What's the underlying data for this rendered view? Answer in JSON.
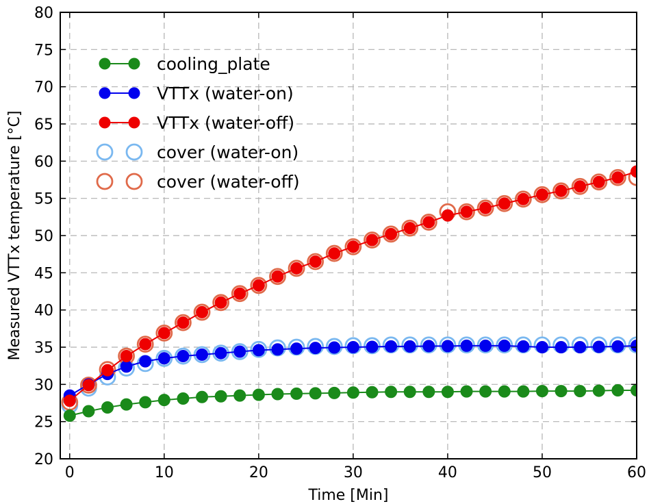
{
  "chart_data": {
    "type": "line",
    "title": "",
    "xlabel": "Time [Min]",
    "ylabel": "Measured VTTx temperature [°C]",
    "xlim": [
      -1,
      60
    ],
    "ylim": [
      20,
      80
    ],
    "xticks": [
      0,
      10,
      20,
      30,
      40,
      50,
      60
    ],
    "yticks": [
      20,
      25,
      30,
      35,
      40,
      45,
      50,
      55,
      60,
      65,
      70,
      75,
      80
    ],
    "grid": true,
    "legend_position": "top-left",
    "x": [
      0,
      2,
      4,
      6,
      8,
      10,
      12,
      14,
      16,
      18,
      20,
      22,
      24,
      26,
      28,
      30,
      32,
      34,
      36,
      38,
      40,
      42,
      44,
      46,
      48,
      50,
      52,
      54,
      56,
      58,
      60
    ],
    "series": [
      {
        "name": "cooling_plate",
        "style": "line-filled-markers",
        "color": "#1a8a1a",
        "values": [
          25.8,
          26.4,
          26.9,
          27.3,
          27.6,
          27.9,
          28.1,
          28.3,
          28.4,
          28.5,
          28.6,
          28.7,
          28.75,
          28.8,
          28.85,
          28.9,
          28.95,
          29.0,
          29.0,
          29.0,
          29.0,
          29.05,
          29.05,
          29.05,
          29.05,
          29.1,
          29.1,
          29.1,
          29.15,
          29.2,
          29.2
        ]
      },
      {
        "name": "VTTx (water-on)",
        "style": "line-filled-markers",
        "color": "#0000ee",
        "values": [
          28.5,
          30.0,
          31.4,
          32.4,
          33.1,
          33.5,
          33.8,
          34.0,
          34.2,
          34.4,
          34.6,
          34.7,
          34.8,
          34.9,
          34.95,
          35.0,
          35.05,
          35.1,
          35.1,
          35.15,
          35.15,
          35.2,
          35.2,
          35.2,
          35.1,
          35.0,
          35.0,
          35.0,
          35.05,
          35.1,
          35.2
        ]
      },
      {
        "name": "VTTx (water-off)",
        "style": "line-filled-markers",
        "color": "#ee0000",
        "values": [
          27.8,
          29.9,
          31.9,
          33.8,
          35.4,
          36.9,
          38.3,
          39.7,
          41.0,
          42.2,
          43.3,
          44.5,
          45.6,
          46.5,
          47.6,
          48.5,
          49.4,
          50.2,
          51.0,
          51.8,
          52.7,
          53.2,
          53.7,
          54.3,
          54.9,
          55.5,
          56.0,
          56.6,
          57.2,
          57.8,
          58.6
        ]
      },
      {
        "name": "cover (water-on)",
        "style": "hollow-markers",
        "color": "#7ab8f0",
        "values": [
          27.2,
          29.5,
          31.0,
          32.2,
          32.8,
          33.5,
          33.8,
          34.0,
          34.2,
          34.4,
          34.7,
          34.9,
          35.0,
          35.1,
          35.1,
          35.2,
          35.2,
          35.3,
          35.3,
          35.3,
          35.3,
          35.3,
          35.3,
          35.3,
          35.3,
          35.3,
          35.3,
          35.3,
          35.3,
          35.3,
          35.3
        ]
      },
      {
        "name": "cover (water-off)",
        "style": "hollow-markers",
        "color": "#e06a4a",
        "values": [
          27.6,
          29.9,
          32.0,
          33.8,
          35.4,
          36.9,
          38.3,
          39.7,
          41.0,
          42.2,
          43.3,
          44.5,
          45.6,
          46.5,
          47.6,
          48.5,
          49.4,
          50.2,
          51.0,
          51.8,
          53.2,
          53.2,
          53.7,
          54.3,
          54.9,
          55.5,
          56.0,
          56.6,
          57.2,
          57.8,
          57.8
        ]
      }
    ]
  }
}
